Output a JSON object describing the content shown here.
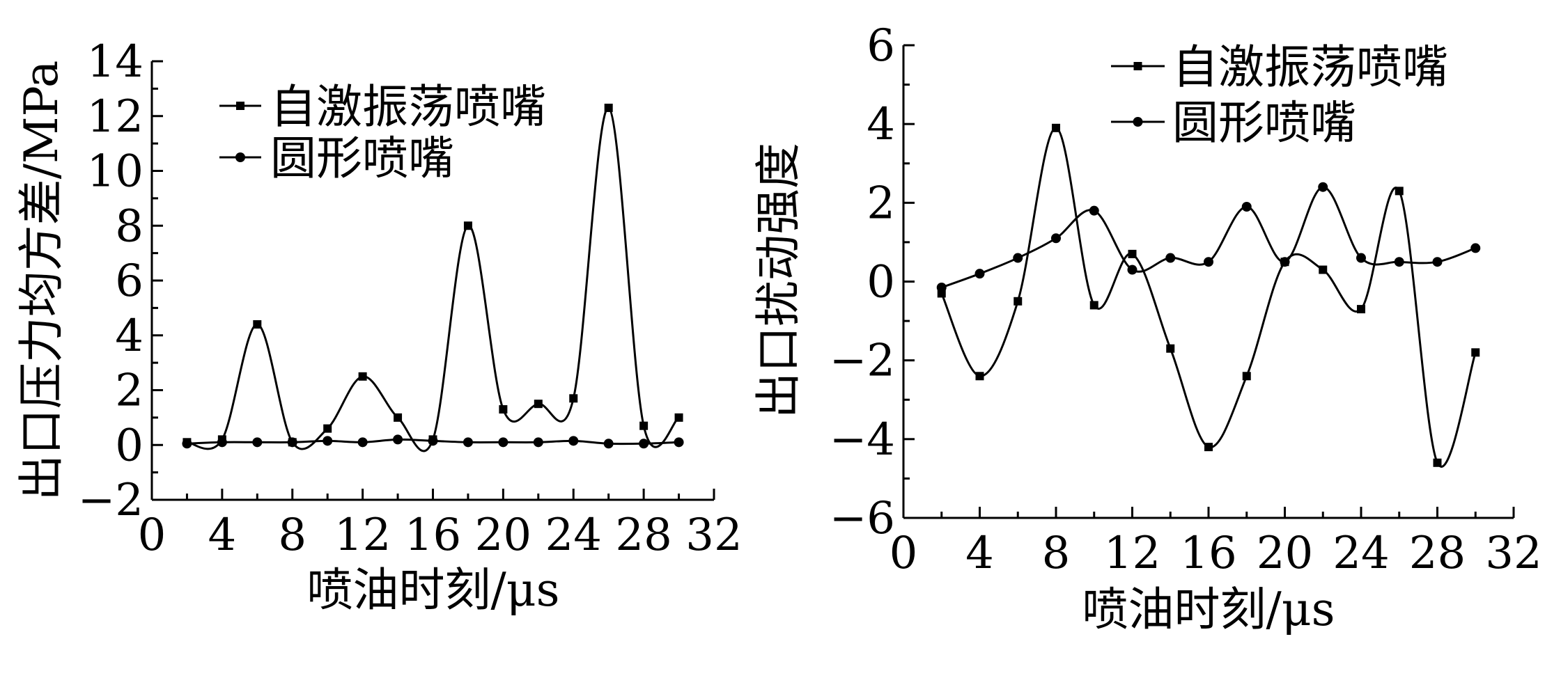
{
  "chart_data": [
    {
      "type": "line",
      "xlabel": "喷油时刻/μs",
      "ylabel": "出口压力均方差/MPa",
      "xlim": [
        0,
        32
      ],
      "ylim": [
        -2,
        14
      ],
      "xticks": [
        "0",
        "4",
        "8",
        "12",
        "16",
        "20",
        "24",
        "28",
        "32"
      ],
      "yticks": [
        "−2",
        "0",
        "2",
        "4",
        "6",
        "8",
        "10",
        "12",
        "14"
      ],
      "legend_position": "top-left",
      "grid": false,
      "x": [
        2,
        4,
        6,
        8,
        10,
        12,
        14,
        16,
        18,
        20,
        22,
        24,
        26,
        28,
        30
      ],
      "series": [
        {
          "name": "自激振荡喷嘴",
          "marker": "square",
          "values": [
            0.1,
            0.2,
            4.4,
            0.1,
            0.6,
            2.5,
            1.0,
            0.2,
            8.0,
            1.3,
            1.5,
            1.7,
            12.3,
            0.7,
            1.0
          ]
        },
        {
          "name": "圆形喷嘴",
          "marker": "circle",
          "values": [
            0.05,
            0.1,
            0.1,
            0.1,
            0.15,
            0.1,
            0.2,
            0.15,
            0.1,
            0.1,
            0.1,
            0.15,
            0.05,
            0.05,
            0.1
          ]
        }
      ]
    },
    {
      "type": "line",
      "xlabel": "喷油时刻/μs",
      "ylabel": "出口扰动强度",
      "xlim": [
        0,
        32
      ],
      "ylim": [
        -6,
        6
      ],
      "xticks": [
        "0",
        "4",
        "8",
        "12",
        "16",
        "20",
        "24",
        "28",
        "32"
      ],
      "yticks": [
        "−6",
        "−4",
        "−2",
        "0",
        "2",
        "4",
        "6"
      ],
      "legend_position": "top-right",
      "grid": false,
      "x": [
        2,
        4,
        6,
        8,
        10,
        12,
        14,
        16,
        18,
        20,
        22,
        24,
        26,
        28,
        30
      ],
      "series": [
        {
          "name": "自激振荡喷嘴",
          "marker": "square",
          "values": [
            -0.3,
            -2.4,
            -0.5,
            3.9,
            -0.6,
            0.7,
            -1.7,
            -4.2,
            -2.4,
            0.5,
            0.3,
            -0.7,
            2.3,
            -4.6,
            -1.8
          ]
        },
        {
          "name": "圆形喷嘴",
          "marker": "circle",
          "values": [
            -0.15,
            0.2,
            0.6,
            1.1,
            1.8,
            0.3,
            0.6,
            0.5,
            1.9,
            0.5,
            2.4,
            0.6,
            0.5,
            0.5,
            0.85
          ]
        }
      ]
    }
  ]
}
